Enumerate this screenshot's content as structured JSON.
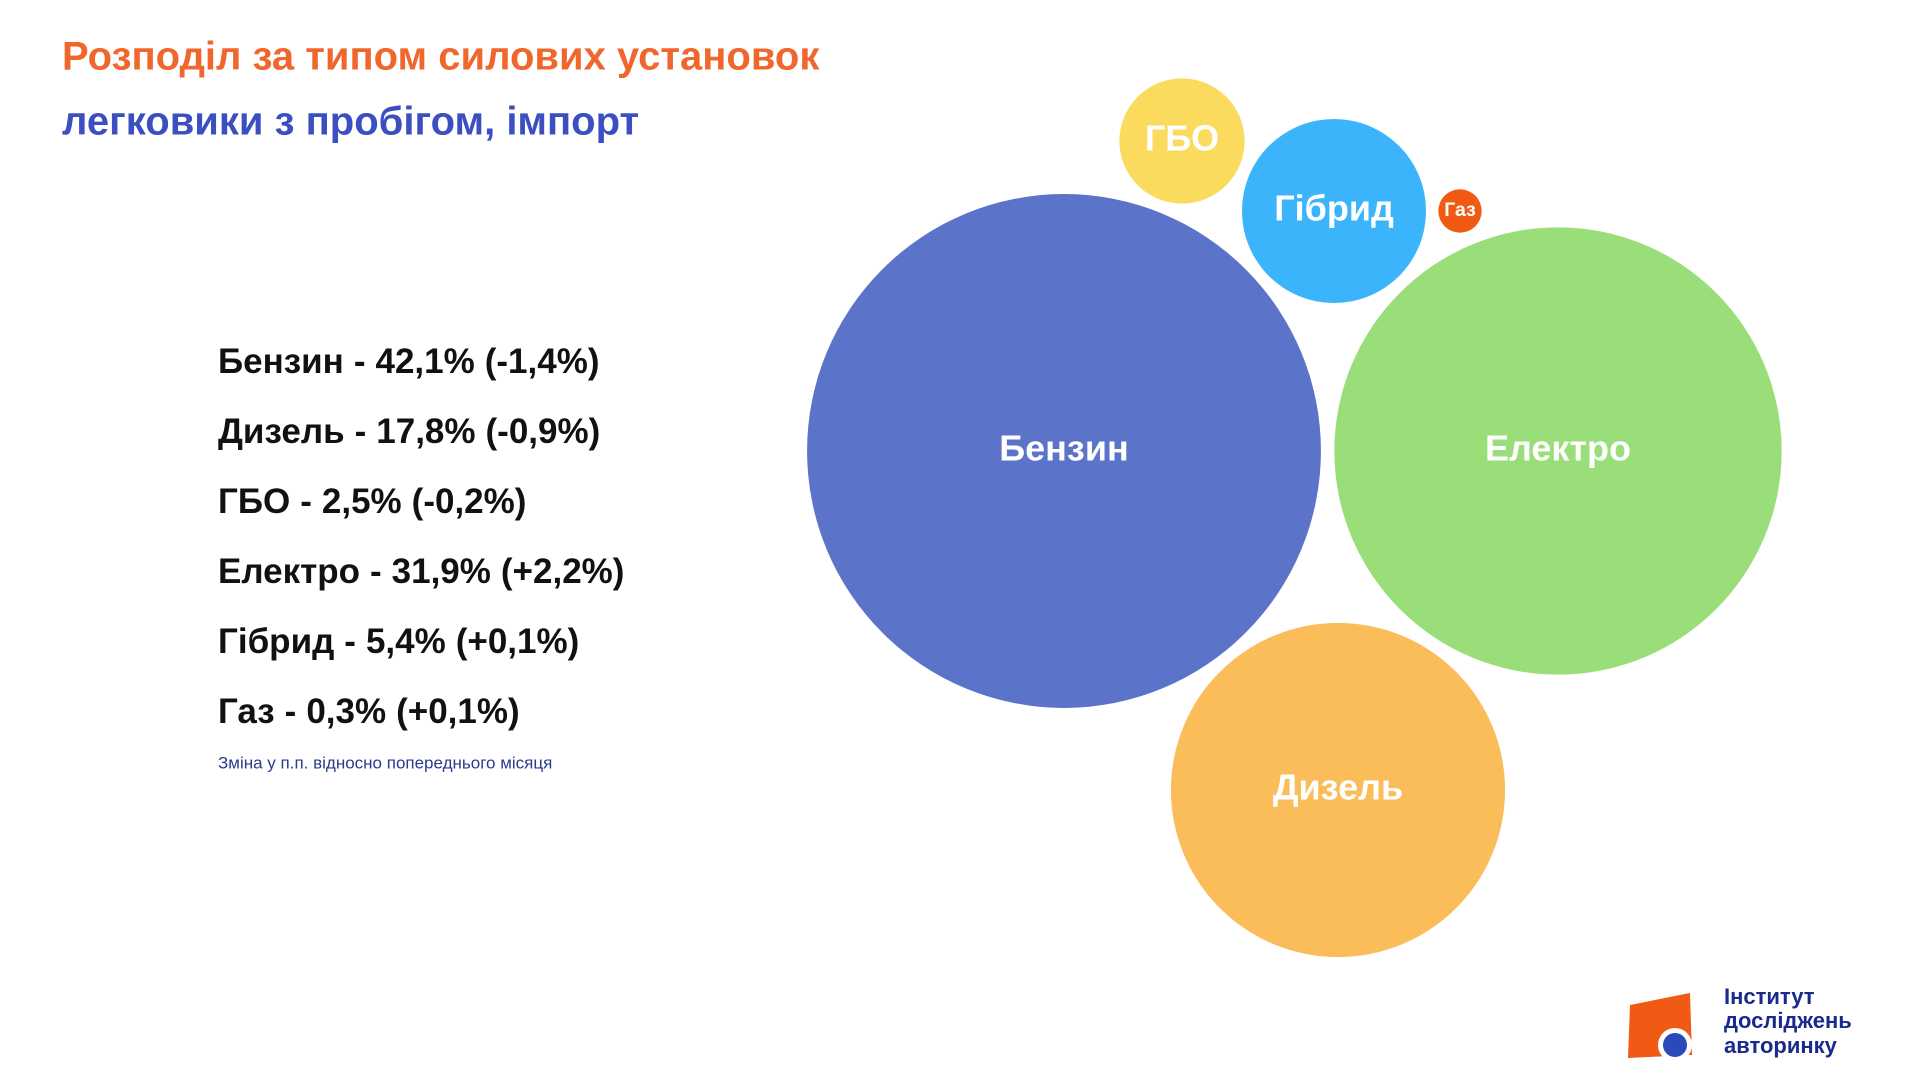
{
  "chart_data": {
    "type": "bubble",
    "title": "Розподіл за типом силових установок",
    "subtitle": "легковики з пробігом, імпорт",
    "categories": [
      "Бензин",
      "Дизель",
      "ГБО",
      "Електро",
      "Гібрид",
      "Газ"
    ],
    "values": [
      42.1,
      17.8,
      2.5,
      31.9,
      5.4,
      0.3
    ],
    "value_labels": [
      "42,1%",
      "17,8%",
      "2,5%",
      "31,9%",
      "5,4%",
      "0,3%"
    ],
    "changes": [
      -1.4,
      -0.9,
      -0.2,
      2.2,
      0.1,
      0.1
    ],
    "change_labels": [
      "(-1,4%)",
      "(-0,9%)",
      "(-0,2%)",
      "(+2,2%)",
      "(+0,1%)",
      "(+0,1%)"
    ],
    "label_separator": "-",
    "note": "Зміна у п.п. відносно попереднього місяця",
    "colors": [
      "#5b73c8",
      "#fbbd5a",
      "#fbdb5e",
      "#9ade7a",
      "#3cb4fb",
      "#f05a14"
    ]
  },
  "logo": {
    "lines": [
      "Інститут",
      "досліджень",
      "авторинку"
    ]
  }
}
